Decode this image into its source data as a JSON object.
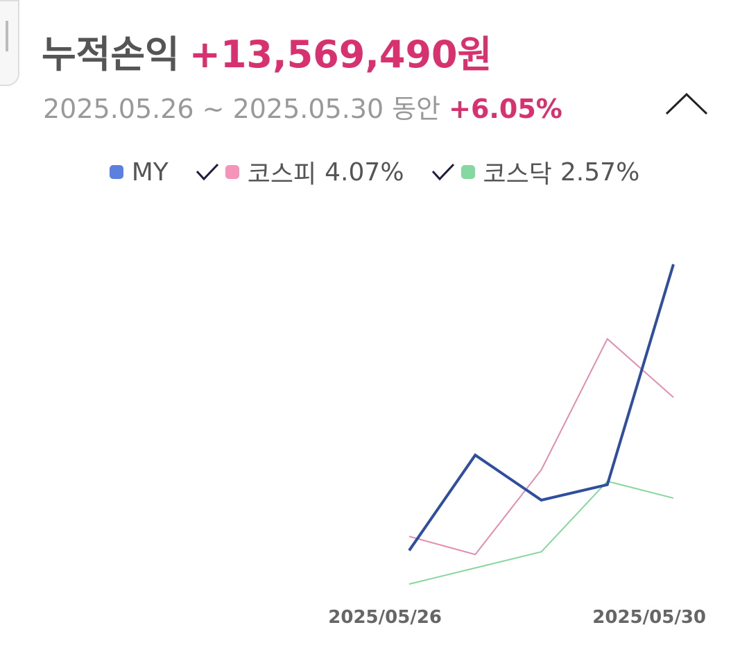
{
  "header": {
    "title": "누적손익",
    "amount": "+13,569,490원",
    "period": "2025.05.26 ~ 2025.05.30 동안",
    "return": "+6.05%"
  },
  "chart_data": {
    "type": "line",
    "categories": [
      "2025/05/26",
      null,
      null,
      null,
      "2025/05/30"
    ],
    "series": [
      {
        "name": "MY",
        "color": "#2f4f9e",
        "legend_color": "#5b80df",
        "values": [
          1.79,
          3.21,
          2.54,
          2.77,
          6.05
        ]
      },
      {
        "name": "코스피",
        "legend_label": "4.07%",
        "color": "#e48cb0",
        "legend_color": "#f593ba",
        "values": [
          2.0,
          1.73,
          2.99,
          4.94,
          4.07
        ]
      },
      {
        "name": "코스닥",
        "legend_label": "2.57%",
        "color": "#86d6a0",
        "legend_color": "#86d8a2",
        "values": [
          1.29,
          1.53,
          1.77,
          2.82,
          2.57
        ]
      }
    ]
  }
}
